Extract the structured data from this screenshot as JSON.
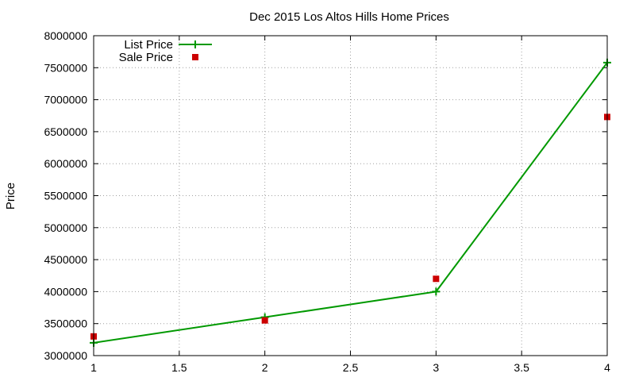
{
  "chart_data": {
    "type": "line",
    "title": "Dec 2015 Los Altos Hills Home Prices",
    "xlabel": "",
    "ylabel": "Price",
    "xlim": [
      1,
      4
    ],
    "ylim": [
      3000000,
      8000000
    ],
    "xticks": [
      1,
      1.5,
      2,
      2.5,
      3,
      3.5,
      4
    ],
    "xtick_labels": [
      "1",
      "1.5",
      "2",
      "2.5",
      "3",
      "3.5",
      "4"
    ],
    "yticks": [
      3000000,
      3500000,
      4000000,
      4500000,
      5000000,
      5500000,
      6000000,
      6500000,
      7000000,
      7500000,
      8000000
    ],
    "ytick_labels": [
      "3000000",
      "3500000",
      "4000000",
      "4500000",
      "5000000",
      "5500000",
      "6000000",
      "6500000",
      "7000000",
      "7500000",
      "8000000"
    ],
    "grid": true,
    "legend_position": "top-left",
    "series": [
      {
        "name": "List Price",
        "style": "line-with-plus-markers",
        "color": "#009900",
        "points": [
          [
            1,
            3200000
          ],
          [
            2,
            3600000
          ],
          [
            3,
            4000000
          ],
          [
            4,
            7580000
          ]
        ]
      },
      {
        "name": "Sale Price",
        "style": "square-markers",
        "color": "#cc0000",
        "points": [
          [
            1,
            3300000
          ],
          [
            2,
            3550000
          ],
          [
            3,
            4200000
          ],
          [
            4,
            6730000
          ]
        ]
      }
    ]
  }
}
